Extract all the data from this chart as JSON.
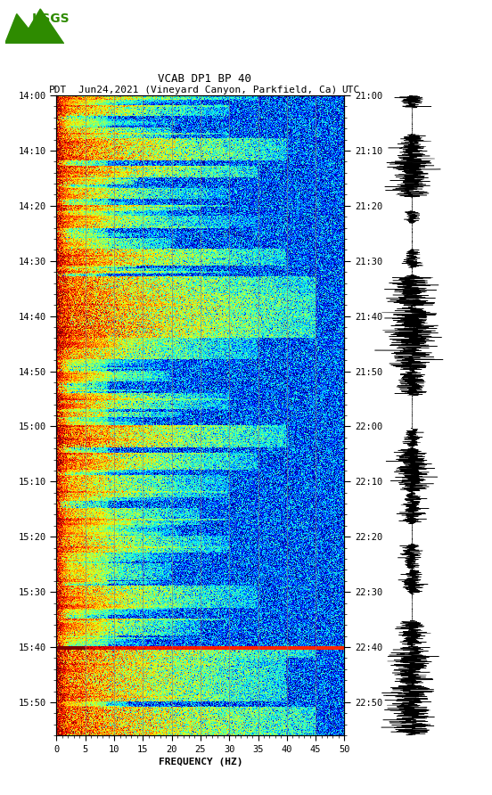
{
  "title_line1": "VCAB DP1 BP 40",
  "title_line2_pdt": "PDT",
  "title_line2_date": "Jun24,2021 (Vineyard Canyon, Parkfield, Ca)",
  "title_line2_utc": "UTC",
  "xlabel": "FREQUENCY (HZ)",
  "freq_min": 0,
  "freq_max": 50,
  "pdt_ticks": [
    "14:00",
    "14:10",
    "14:20",
    "14:30",
    "14:40",
    "14:50",
    "15:00",
    "15:10",
    "15:20",
    "15:30",
    "15:40",
    "15:50"
  ],
  "utc_ticks": [
    "21:00",
    "21:10",
    "21:20",
    "21:30",
    "21:40",
    "21:50",
    "22:00",
    "22:10",
    "22:20",
    "22:30",
    "22:40",
    "22:50"
  ],
  "freq_ticks": [
    0,
    5,
    10,
    15,
    20,
    25,
    30,
    35,
    40,
    45,
    50
  ],
  "background_color": "#ffffff",
  "fig_width": 5.52,
  "fig_height": 8.92,
  "vline_color": "#808080",
  "vline_alpha": 0.6,
  "vline_lw": 0.7,
  "vline_freqs": [
    5,
    10,
    15,
    20,
    25,
    30,
    35,
    40,
    45
  ]
}
